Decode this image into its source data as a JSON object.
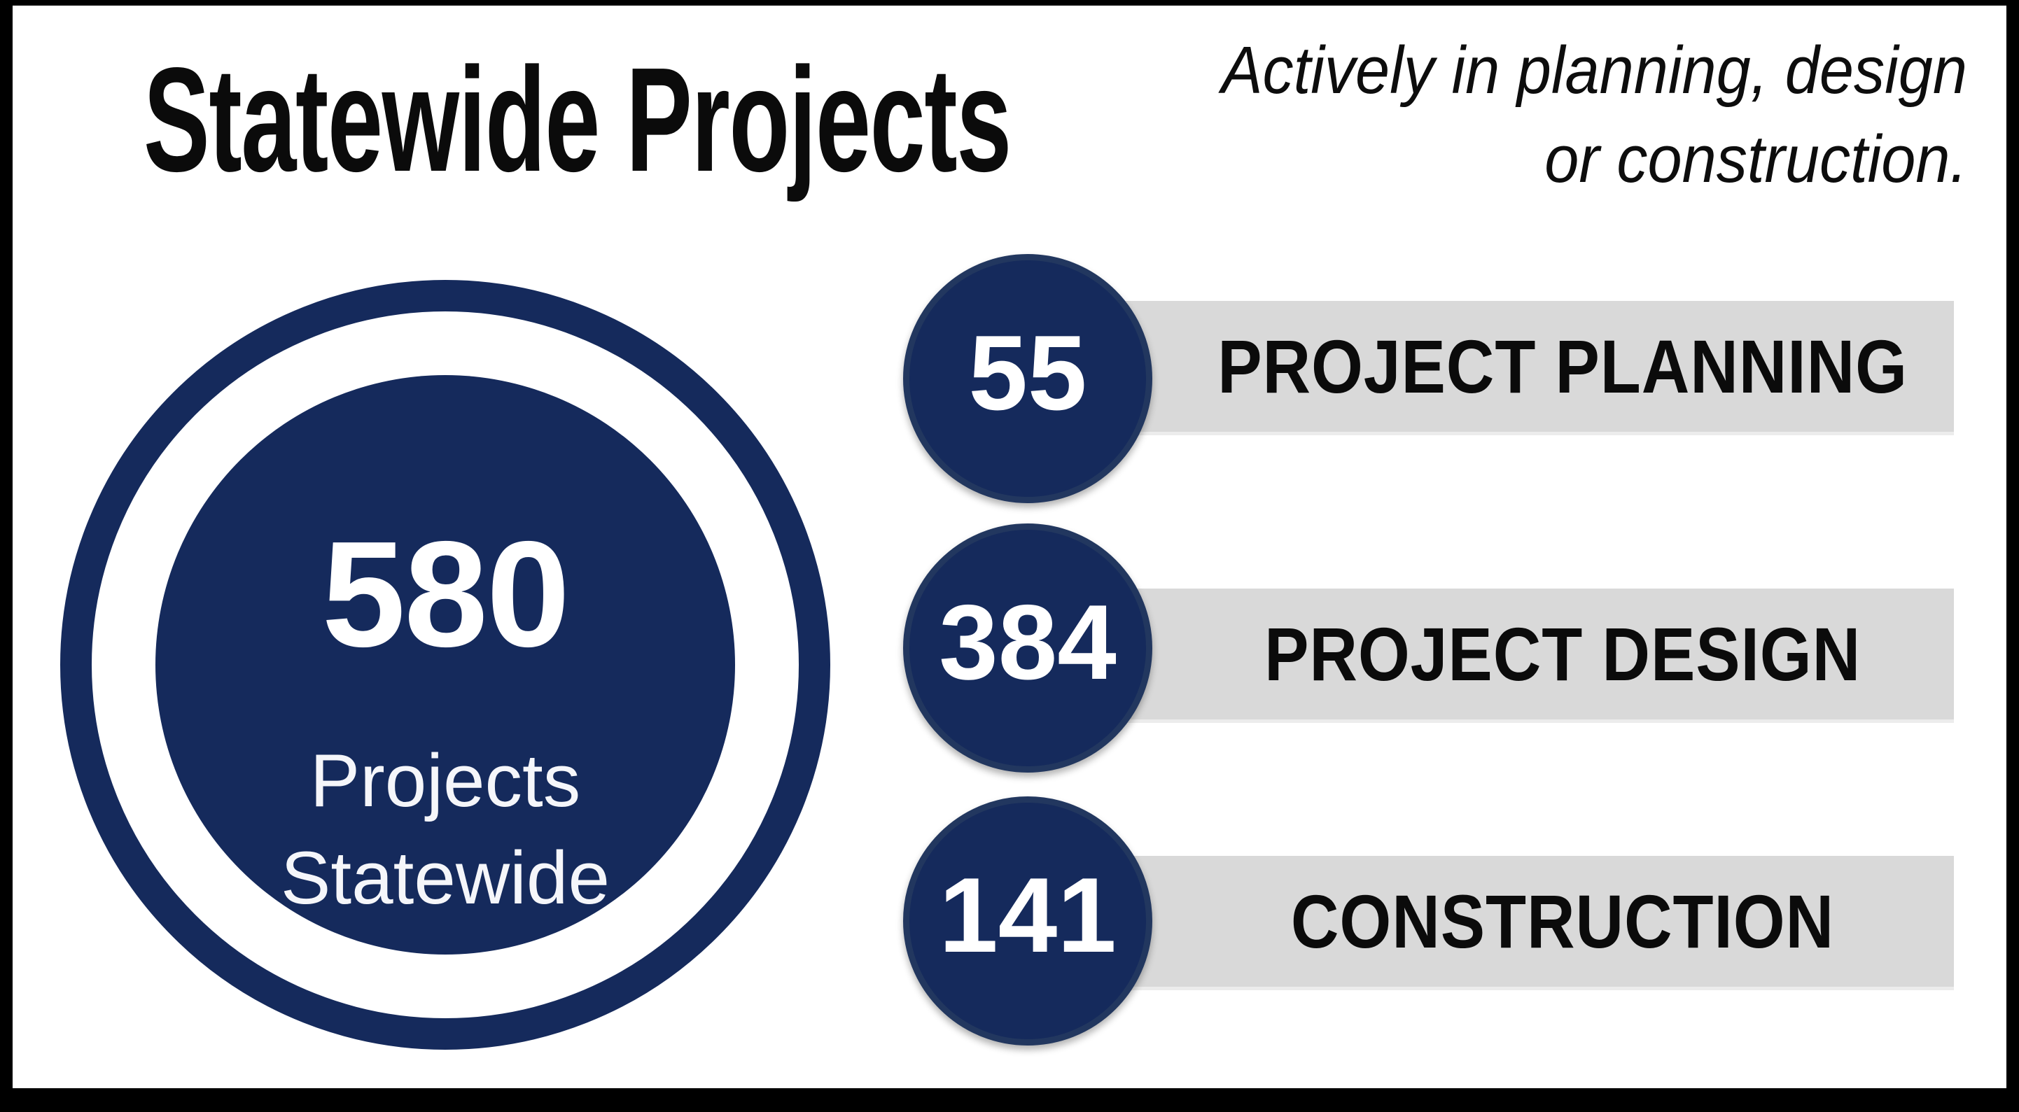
{
  "title": "Statewide Projects",
  "subtitle": {
    "line1": "Actively in planning, design",
    "line2": "or construction."
  },
  "total": {
    "value": "580",
    "label_line1": "Projects",
    "label_line2": "Statewide"
  },
  "stages": [
    {
      "value": "55",
      "label": "PROJECT PLANNING"
    },
    {
      "value": "384",
      "label": "PROJECT DESIGN"
    },
    {
      "value": "141",
      "label": "CONSTRUCTION"
    }
  ],
  "colors": {
    "navy": "#152A5C",
    "navy_rim": "#22375F",
    "bar_gray": "#D9D9D9",
    "text_black": "#0B0B0B",
    "frame_black": "#000000",
    "white": "#FFFFFF"
  },
  "chart_data": {
    "type": "table",
    "title": "Statewide Projects",
    "subtitle": "Actively in planning, design or construction.",
    "total": {
      "value": 580,
      "label": "Projects Statewide"
    },
    "categories": [
      "PROJECT PLANNING",
      "PROJECT DESIGN",
      "CONSTRUCTION"
    ],
    "values": [
      55,
      384,
      141
    ],
    "legend_position": "none",
    "grid": false
  }
}
